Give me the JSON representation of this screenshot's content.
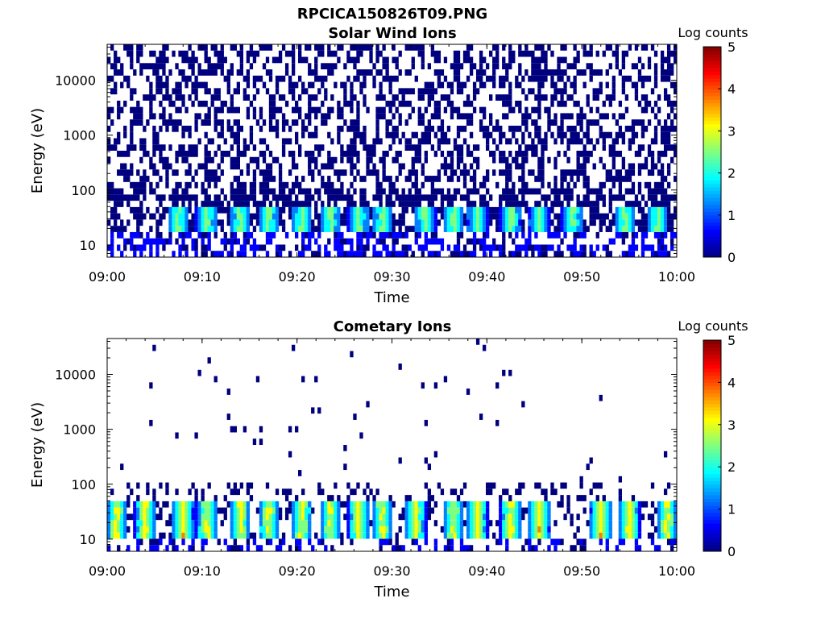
{
  "figure_title": "RPCICA150826T09.PNG",
  "colormap": [
    "#00007f",
    "#0000ff",
    "#007fff",
    "#00ffff",
    "#7fff7f",
    "#ffff00",
    "#ff7f00",
    "#ff0000",
    "#7f0000"
  ],
  "chart_data": [
    {
      "type": "heatmap",
      "title": "Solar Wind Ions",
      "xlabel": "Time",
      "ylabel": "Energy (eV)",
      "x_ticks": [
        "09:00",
        "09:10",
        "09:20",
        "09:30",
        "09:40",
        "09:50",
        "10:00"
      ],
      "x_range": [
        "09:00",
        "10:00"
      ],
      "y_scale": "log",
      "y_range": [
        6,
        45000
      ],
      "y_ticks": [
        10,
        100,
        1000,
        10000
      ],
      "y_tick_labels": [
        "10",
        "100",
        "1000",
        "10000"
      ],
      "colorbar": {
        "label": "Log counts",
        "range": [
          0,
          5
        ],
        "ticks": [
          "0",
          "1",
          "2",
          "3",
          "4",
          "5"
        ]
      },
      "background_noise_max_energy_ev": 40000,
      "enhanced_band_ev": [
        16,
        45
      ],
      "enhancement_centers_min": [
        7.5,
        10.5,
        14.0,
        17.0,
        20.5,
        23.5,
        26.5,
        29.0,
        33.5,
        36.5,
        39.0,
        42.5,
        45.5,
        49.0,
        54.5,
        58.0
      ],
      "peak_log_counts": 2.8
    },
    {
      "type": "heatmap",
      "title": "Cometary Ions",
      "xlabel": "Time",
      "ylabel": "Energy (eV)",
      "x_ticks": [
        "09:00",
        "09:10",
        "09:20",
        "09:30",
        "09:40",
        "09:50",
        "10:00"
      ],
      "x_range": [
        "09:00",
        "10:00"
      ],
      "y_scale": "log",
      "y_range": [
        6,
        45000
      ],
      "y_ticks": [
        10,
        100,
        1000,
        10000
      ],
      "y_tick_labels": [
        "10",
        "100",
        "1000",
        "10000"
      ],
      "colorbar": {
        "label": "Log counts",
        "range": [
          0,
          5
        ],
        "ticks": [
          "0",
          "1",
          "2",
          "3",
          "4",
          "5"
        ]
      },
      "background_noise_max_energy_ev": 120,
      "enhanced_band_ev": [
        10,
        45
      ],
      "enhancement_centers_min": [
        1.0,
        4.0,
        8.0,
        10.5,
        14.0,
        17.0,
        20.5,
        23.5,
        26.5,
        29.0,
        32.5,
        36.5,
        39.0,
        42.5,
        45.5,
        52.0,
        55.0,
        59.0
      ],
      "peak_log_counts": 3.6
    }
  ]
}
